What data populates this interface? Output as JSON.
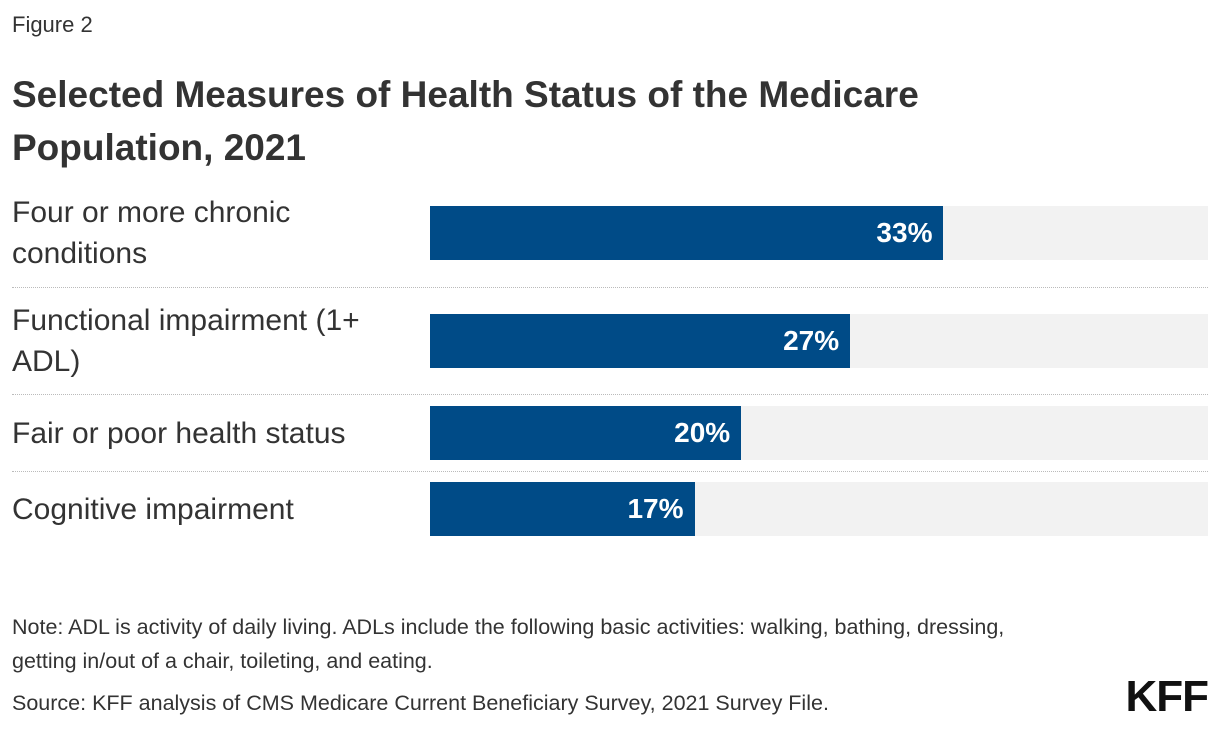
{
  "chart_data": {
    "type": "hbar",
    "figure_label": "Figure 2",
    "title": "Selected Measures of Health Status of the Medicare Population, 2021",
    "categories": [
      "Four or more chronic conditions",
      "Functional impairment (1+ ADL)",
      "Fair or poor health status",
      "Cognitive impairment"
    ],
    "values": [
      33,
      27,
      20,
      17
    ],
    "value_labels": [
      "33%",
      "27%",
      "20%",
      "17%"
    ],
    "color": "#004b87",
    "xlim": [
      0,
      50
    ],
    "note": "Note: ADL is activity of daily living. ADLs include the following basic activities: walking, bathing, dressing, getting in/out of a chair, toileting, and eating.",
    "source": "Source: KFF analysis of CMS Medicare Current Beneficiary Survey, 2021 Survey File.",
    "logo": "KFF"
  }
}
